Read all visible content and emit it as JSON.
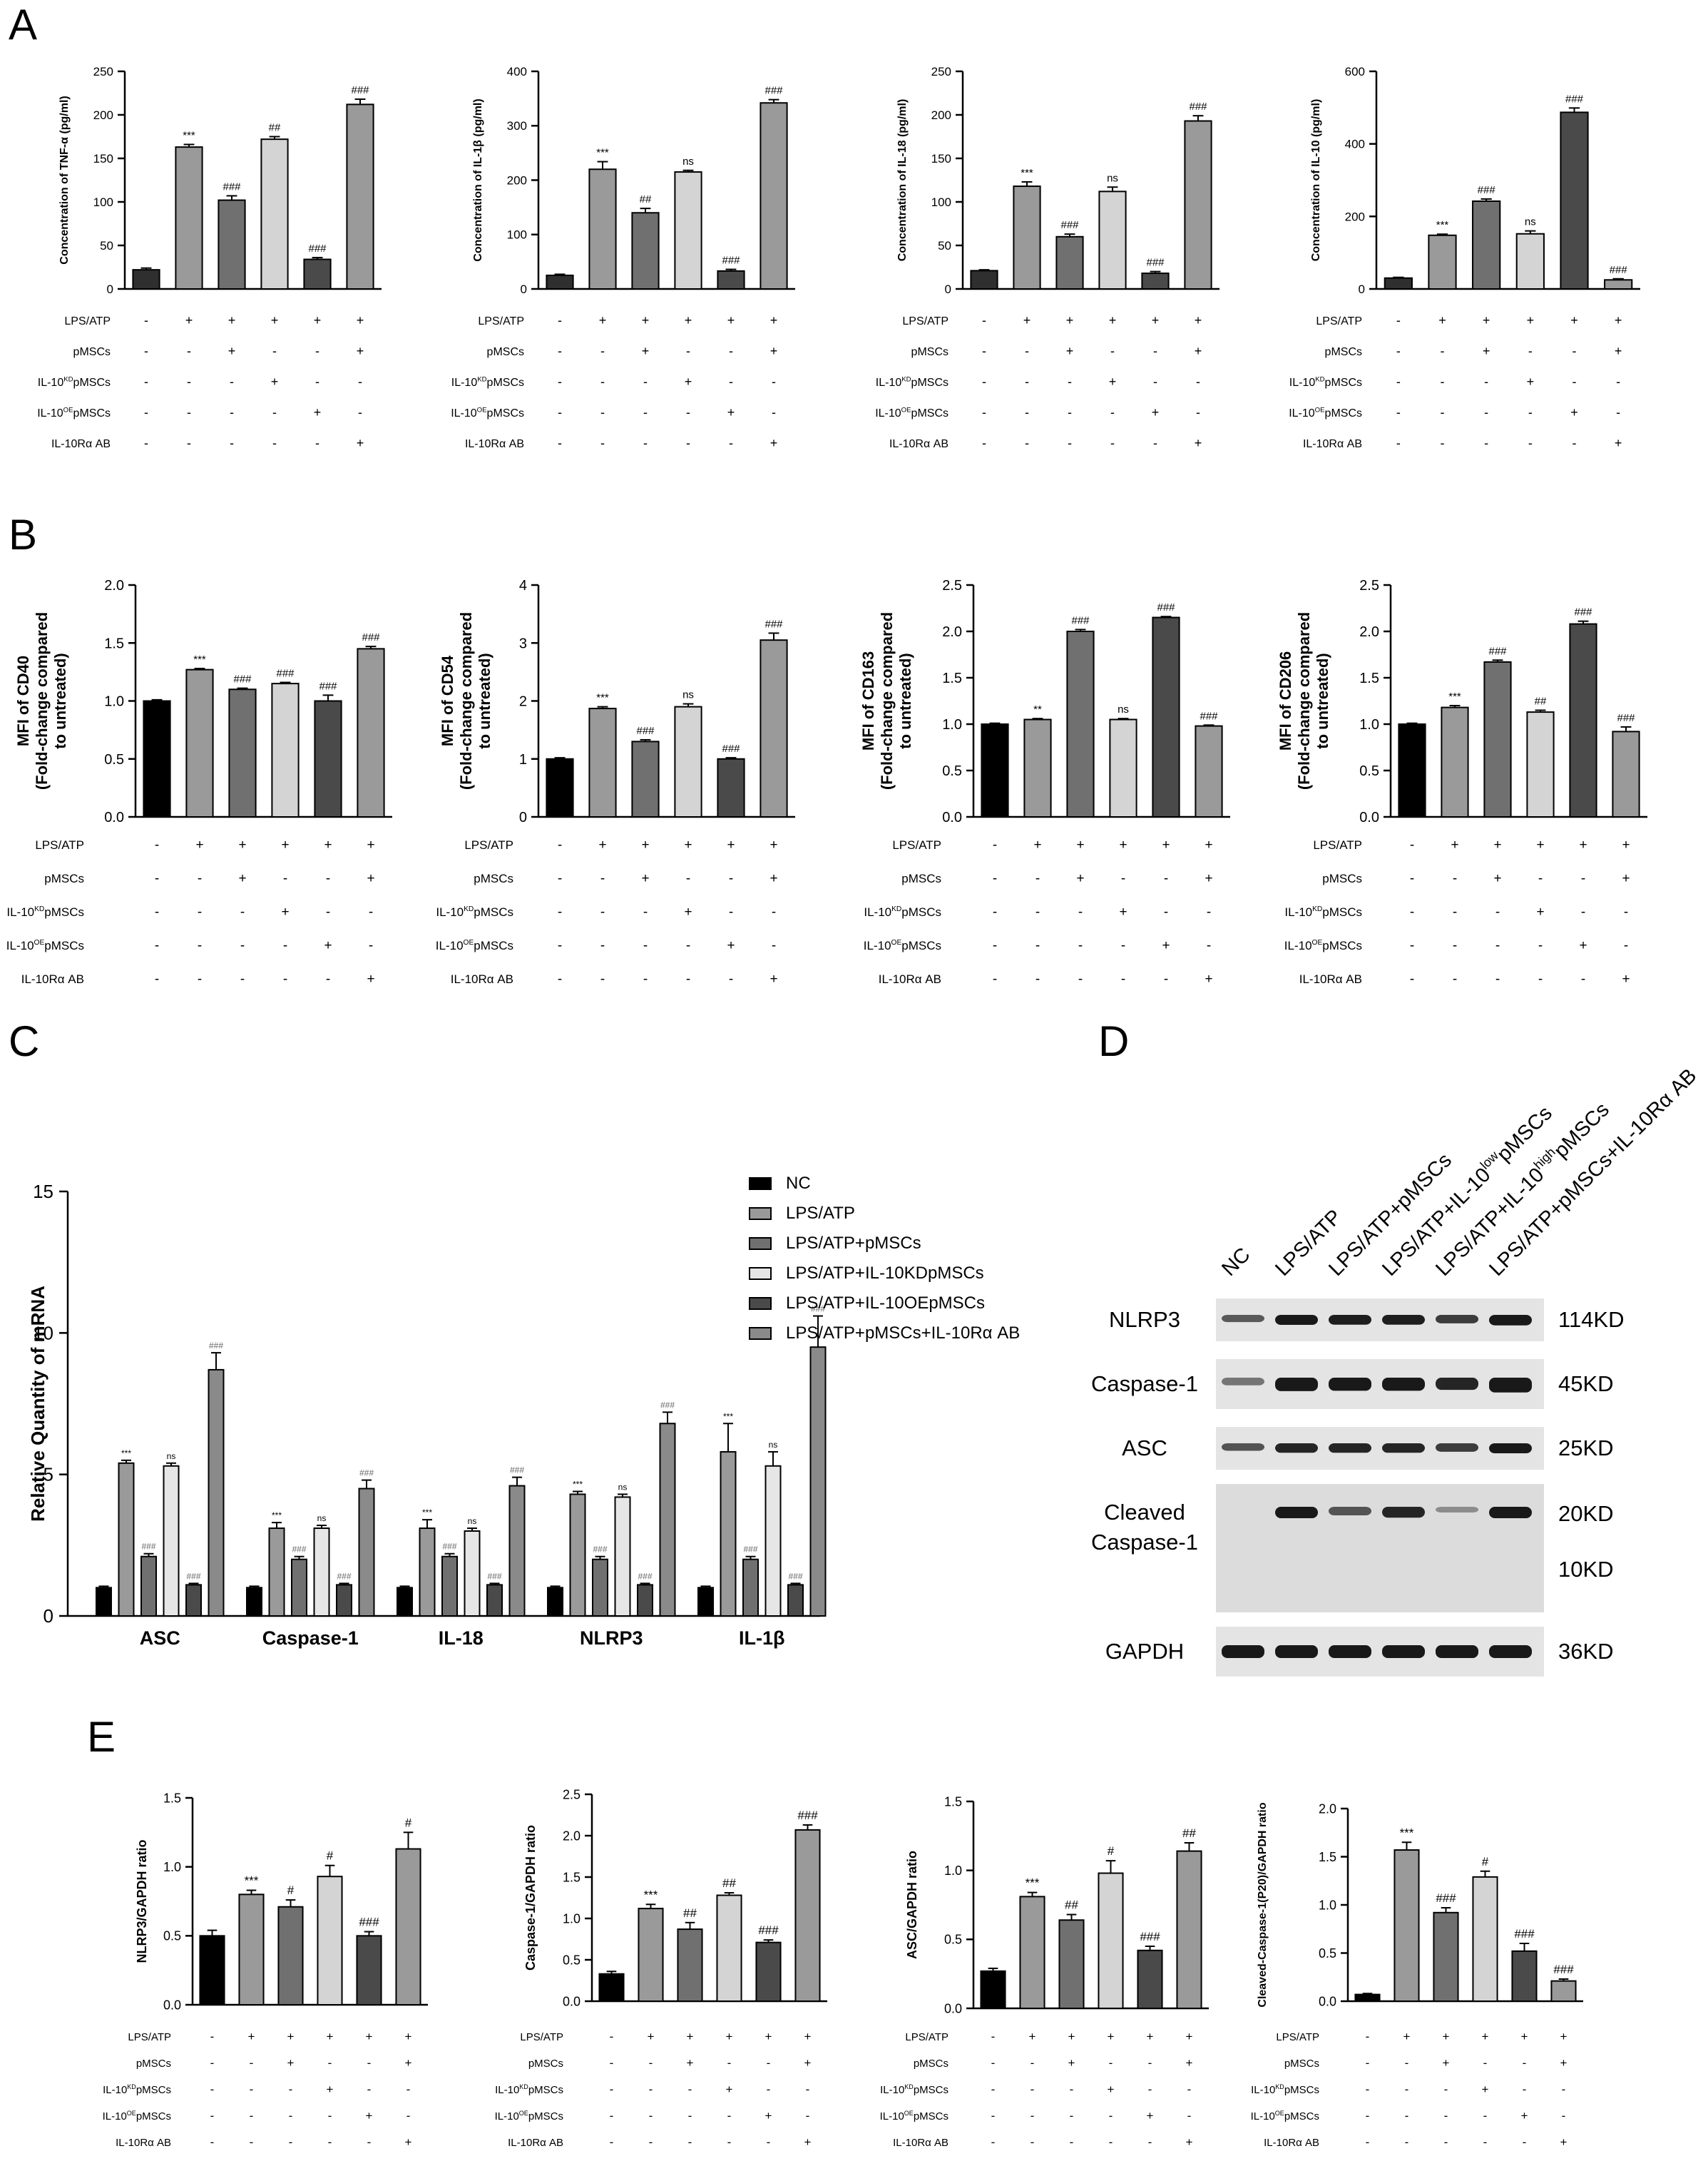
{
  "panel_labels": [
    "A",
    "B",
    "C",
    "D",
    "E"
  ],
  "treatment_rows": [
    "LPS/ATP",
    "pMSCs",
    "IL-10KDpMSCs",
    "IL-10OEpMSCs",
    "IL-10Rα AB"
  ],
  "treatment_matrix": [
    [
      "-",
      "+",
      "+",
      "+",
      "+",
      "+"
    ],
    [
      "-",
      "-",
      "+",
      "-",
      "-",
      "+"
    ],
    [
      "-",
      "-",
      "-",
      "+",
      "-",
      "-"
    ],
    [
      "-",
      "-",
      "-",
      "-",
      "+",
      "-"
    ],
    [
      "-",
      "-",
      "-",
      "-",
      "-",
      "+"
    ]
  ],
  "bar_colors": [
    "#2f2f2f",
    "#9a9a9a",
    "#707070",
    "#d4d4d4",
    "#4a4a4a",
    "#9a9a9a"
  ],
  "bar_colors_b": [
    "#000000",
    "#9a9a9a",
    "#707070",
    "#d4d4d4",
    "#4a4a4a",
    "#9a9a9a"
  ],
  "chart_data": [
    {
      "id": "A1",
      "panel": "A",
      "type": "bar",
      "ylabel": "Concentration of TNF-α (pg/ml)",
      "ylim": [
        0,
        250
      ],
      "ticks": [
        0,
        50,
        100,
        150,
        200,
        250
      ],
      "values": [
        22,
        163,
        102,
        172,
        34,
        212
      ],
      "errors": [
        2,
        3,
        5,
        3,
        2,
        6
      ],
      "annotations": [
        "",
        "***",
        "###",
        "##",
        "###",
        "###"
      ]
    },
    {
      "id": "A2",
      "panel": "A",
      "type": "bar",
      "ylabel": "Concentration of IL-1β (pg/ml)",
      "ylim": [
        0,
        400
      ],
      "ticks": [
        0,
        100,
        200,
        300,
        400
      ],
      "values": [
        25,
        220,
        140,
        215,
        33,
        342
      ],
      "errors": [
        2,
        14,
        8,
        3,
        3,
        6
      ],
      "annotations": [
        "",
        "***",
        "##",
        "ns",
        "###",
        "###"
      ]
    },
    {
      "id": "A3",
      "panel": "A",
      "type": "bar",
      "ylabel": "Concentration of IL-18 (pg/ml)",
      "ylim": [
        0,
        250
      ],
      "ticks": [
        0,
        50,
        100,
        150,
        200,
        250
      ],
      "values": [
        21,
        118,
        60,
        112,
        18,
        193
      ],
      "errors": [
        1,
        5,
        3,
        5,
        2,
        6
      ],
      "annotations": [
        "",
        "***",
        "###",
        "ns",
        "###",
        "###"
      ]
    },
    {
      "id": "A4",
      "panel": "A",
      "type": "bar",
      "ylabel": "Concentration of IL-10 (pg/ml)",
      "ylim": [
        0,
        600
      ],
      "ticks": [
        0,
        200,
        400,
        600
      ],
      "values": [
        30,
        148,
        242,
        152,
        487,
        25
      ],
      "errors": [
        2,
        3,
        6,
        8,
        12,
        3
      ],
      "annotations": [
        "",
        "***",
        "###",
        "ns",
        "###",
        "###"
      ]
    },
    {
      "id": "B1",
      "panel": "B",
      "type": "bar",
      "ylabel": "MFI of CD40 (Fold-change compared to untreated)",
      "ylim": [
        0,
        2.0
      ],
      "ticks": [
        0,
        0.5,
        1.0,
        1.5,
        2.0
      ],
      "values": [
        1.0,
        1.27,
        1.1,
        1.15,
        1.0,
        1.45
      ],
      "errors": [
        0.01,
        0.01,
        0.01,
        0.01,
        0.05,
        0.02
      ],
      "annotations": [
        "",
        "***",
        "###",
        "###",
        "###",
        "###"
      ]
    },
    {
      "id": "B2",
      "panel": "B",
      "type": "bar",
      "ylabel": "MFI of CD54 (Fold-change compared to untreated)",
      "ylim": [
        0,
        4
      ],
      "ticks": [
        0,
        1,
        2,
        3,
        4
      ],
      "values": [
        1.0,
        1.87,
        1.3,
        1.9,
        1.0,
        3.05
      ],
      "errors": [
        0.02,
        0.03,
        0.03,
        0.05,
        0.02,
        0.12
      ],
      "annotations": [
        "",
        "***",
        "###",
        "ns",
        "###",
        "###"
      ]
    },
    {
      "id": "B3",
      "panel": "B",
      "type": "bar",
      "ylabel": "MFI of CD163 (Fold-change compared to untreated)",
      "ylim": [
        0,
        2.5
      ],
      "ticks": [
        0,
        0.5,
        1.0,
        1.5,
        2.0,
        2.5
      ],
      "values": [
        1.0,
        1.05,
        2.0,
        1.05,
        2.15,
        0.98
      ],
      "errors": [
        0.01,
        0.01,
        0.02,
        0.01,
        0.01,
        0.01
      ],
      "annotations": [
        "",
        "**",
        "###",
        "ns",
        "###",
        "###"
      ]
    },
    {
      "id": "B4",
      "panel": "B",
      "type": "bar",
      "ylabel": "MFI of CD206 (Fold-change compared to untreated)",
      "ylim": [
        0,
        2.5
      ],
      "ticks": [
        0,
        0.5,
        1.0,
        1.5,
        2.0,
        2.5
      ],
      "values": [
        1.0,
        1.18,
        1.67,
        1.13,
        2.08,
        0.92
      ],
      "errors": [
        0.01,
        0.02,
        0.02,
        0.02,
        0.03,
        0.05
      ],
      "annotations": [
        "",
        "***",
        "###",
        "##",
        "###",
        "###"
      ]
    },
    {
      "id": "C",
      "panel": "C",
      "type": "bar",
      "ylabel": "Relative Quantity of mRNA",
      "ylim": [
        0,
        15
      ],
      "ticks": [
        0,
        5,
        10,
        15
      ],
      "categories": [
        "ASC",
        "Caspase-1",
        "IL-18",
        "NLRP3",
        "IL-1β"
      ],
      "series": [
        {
          "name": "NC",
          "values": [
            1.0,
            1.0,
            1.0,
            1.0,
            1.0
          ],
          "errors": [
            0.05,
            0.05,
            0.05,
            0.05,
            0.05
          ]
        },
        {
          "name": "LPS/ATP",
          "values": [
            5.4,
            3.1,
            3.1,
            4.3,
            5.8
          ],
          "errors": [
            0.1,
            0.2,
            0.3,
            0.1,
            1.0
          ]
        },
        {
          "name": "LPS/ATP+pMSCs",
          "values": [
            2.1,
            2.0,
            2.1,
            2.0,
            2.0
          ],
          "errors": [
            0.1,
            0.1,
            0.1,
            0.1,
            0.1
          ]
        },
        {
          "name": "LPS/ATP+IL-10KDpMSCs",
          "values": [
            5.3,
            3.1,
            3.0,
            4.2,
            5.3
          ],
          "errors": [
            0.1,
            0.1,
            0.1,
            0.1,
            0.5
          ]
        },
        {
          "name": "LPS/ATP+IL-10OEpMSCs",
          "values": [
            1.1,
            1.1,
            1.1,
            1.1,
            1.1
          ],
          "errors": [
            0.05,
            0.05,
            0.05,
            0.05,
            0.05
          ]
        },
        {
          "name": "LPS/ATP+pMSCs+IL-10Rα AB",
          "values": [
            8.7,
            4.5,
            4.6,
            6.8,
            9.5
          ],
          "errors": [
            0.6,
            0.3,
            0.3,
            0.4,
            1.1
          ]
        }
      ],
      "annotations": [
        [
          "",
          "***",
          "###",
          "ns",
          "###",
          "###"
        ],
        [
          "",
          "***",
          "###",
          "ns",
          "###",
          "###"
        ],
        [
          "",
          "***",
          "###",
          "ns",
          "###",
          "###"
        ],
        [
          "",
          "***",
          "###",
          "ns",
          "###",
          "###"
        ],
        [
          "",
          "***",
          "###",
          "ns",
          "###",
          "###"
        ]
      ]
    },
    {
      "id": "E1",
      "panel": "E",
      "type": "bar",
      "ylabel": "NLRP3/GAPDH ratio",
      "ylim": [
        0,
        1.5
      ],
      "ticks": [
        0,
        0.5,
        1.0,
        1.5
      ],
      "values": [
        0.5,
        0.8,
        0.71,
        0.93,
        0.5,
        1.13
      ],
      "errors": [
        0.04,
        0.03,
        0.05,
        0.08,
        0.03,
        0.12
      ],
      "annotations": [
        "",
        "***",
        "#",
        "#",
        "###",
        "#"
      ]
    },
    {
      "id": "E2",
      "panel": "E",
      "type": "bar",
      "ylabel": "Caspase-1/GAPDH ratio",
      "ylim": [
        0,
        2.5
      ],
      "ticks": [
        0,
        0.5,
        1.0,
        1.5,
        2.0,
        2.5
      ],
      "values": [
        0.33,
        1.12,
        0.87,
        1.28,
        0.71,
        2.07
      ],
      "errors": [
        0.03,
        0.05,
        0.08,
        0.03,
        0.03,
        0.06
      ],
      "annotations": [
        "",
        "***",
        "##",
        "##",
        "###",
        "###"
      ]
    },
    {
      "id": "E3",
      "panel": "E",
      "type": "bar",
      "ylabel": "ASC/GAPDH ratio",
      "ylim": [
        0,
        1.5
      ],
      "ticks": [
        0,
        0.5,
        1.0,
        1.5
      ],
      "values": [
        0.27,
        0.81,
        0.64,
        0.98,
        0.42,
        1.14
      ],
      "errors": [
        0.02,
        0.03,
        0.04,
        0.09,
        0.03,
        0.06
      ],
      "annotations": [
        "",
        "***",
        "##",
        "#",
        "###",
        "##"
      ]
    },
    {
      "id": "E4",
      "panel": "E",
      "type": "bar",
      "ylabel": "Cleaved-Caspase-1(P20)/GAPDH ratio",
      "ylim": [
        0,
        2.0
      ],
      "ticks": [
        0,
        0.5,
        1.0,
        1.5,
        2.0
      ],
      "values": [
        0.07,
        1.57,
        0.92,
        1.29,
        0.52,
        0.21
      ],
      "errors": [
        0.01,
        0.08,
        0.05,
        0.06,
        0.08,
        0.02
      ],
      "annotations": [
        "",
        "***",
        "###",
        "#",
        "###",
        "###"
      ]
    }
  ],
  "western": {
    "lanes": [
      "NC",
      "LPS/ATP",
      "LPS/ATP+pMSCs",
      "LPS/ATP+IL-10lowpMSCs",
      "LPS/ATP+IL-10highpMSCs",
      "LPS/ATP+pMSCs+IL-10Rα AB"
    ],
    "proteins": [
      {
        "name": "NLRP3",
        "size": "114KD"
      },
      {
        "name": "Caspase-1",
        "size": "45KD"
      },
      {
        "name": "ASC",
        "size": "25KD"
      },
      {
        "name": "Cleaved Caspase-1",
        "size": "20KD",
        "size2": "10KD"
      },
      {
        "name": "GAPDH",
        "size": "36KD"
      }
    ]
  }
}
